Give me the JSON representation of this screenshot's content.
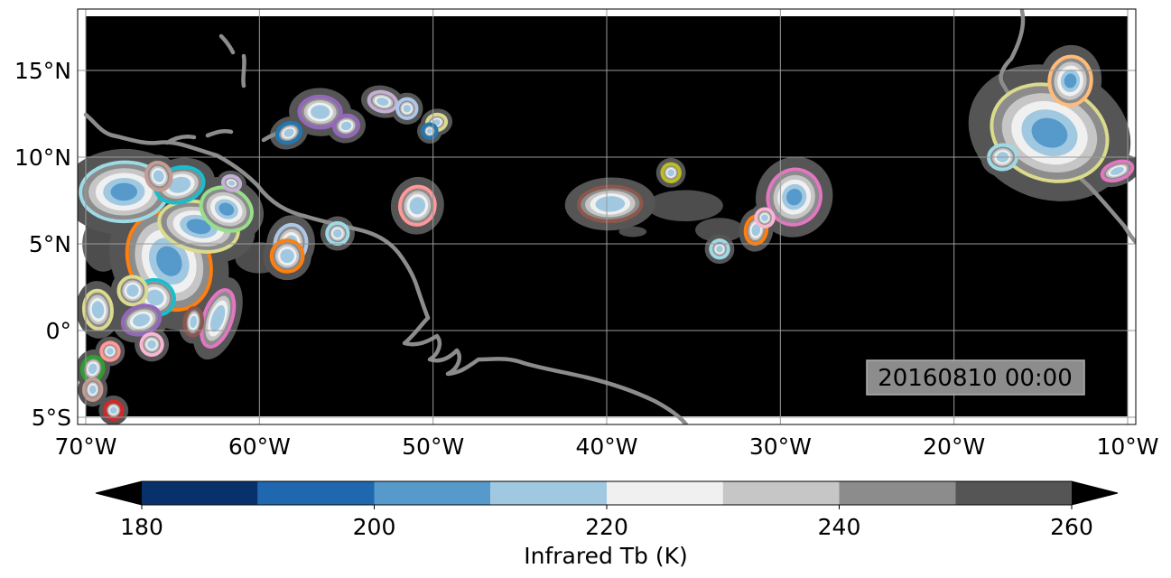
{
  "map": {
    "lon_range": [
      -70,
      -10
    ],
    "lat_range": [
      -5.5,
      18.5
    ],
    "background": "#000000",
    "coastline_color": "#8c8c8c",
    "gridlines": true,
    "x_ticks": [
      {
        "lon": -70,
        "label": "70°W"
      },
      {
        "lon": -60,
        "label": "60°W"
      },
      {
        "lon": -50,
        "label": "50°W"
      },
      {
        "lon": -40,
        "label": "40°W"
      },
      {
        "lon": -30,
        "label": "30°W"
      },
      {
        "lon": -20,
        "label": "20°W"
      },
      {
        "lon": -10,
        "label": "10°W"
      }
    ],
    "y_ticks": [
      {
        "lat": 15,
        "label": "15°N"
      },
      {
        "lat": 10,
        "label": "10°N"
      },
      {
        "lat": 5,
        "label": "5°N"
      },
      {
        "lat": 0,
        "label": "0°"
      },
      {
        "lat": -5,
        "label": "5°S"
      }
    ],
    "timestamp": "20160810 00:00"
  },
  "colorbar": {
    "label": "Infrared Tb (K)",
    "range": [
      180,
      260
    ],
    "levels": [
      {
        "from": 180,
        "to": 190,
        "color": "#08306b"
      },
      {
        "from": 190,
        "to": 200,
        "color": "#1f68b0"
      },
      {
        "from": 200,
        "to": 210,
        "color": "#5699cb"
      },
      {
        "from": 210,
        "to": 220,
        "color": "#a0c8e0"
      },
      {
        "from": 220,
        "to": 230,
        "color": "#f0f0f0"
      },
      {
        "from": 230,
        "to": 240,
        "color": "#c6c6c6"
      },
      {
        "from": 240,
        "to": 250,
        "color": "#8c8c8c"
      },
      {
        "from": 250,
        "to": 260,
        "color": "#555555"
      }
    ],
    "under_color": "#000000",
    "over_color": "#000000",
    "ticks": [
      {
        "value": 180,
        "label": "180"
      },
      {
        "value": 200,
        "label": "200"
      },
      {
        "value": 220,
        "label": "220"
      },
      {
        "value": 240,
        "label": "240"
      },
      {
        "value": 260,
        "label": "260"
      }
    ]
  },
  "clusters": [
    {
      "lon": -65.2,
      "lat": 4.0,
      "rx": 2.2,
      "ry": 2.8,
      "outline": "#ff7f0e"
    },
    {
      "lon": -63.5,
      "lat": 6.0,
      "rx": 2.2,
      "ry": 1.3,
      "outline": "#dbdb8d"
    },
    {
      "lon": -67.8,
      "lat": 8.0,
      "rx": 2.4,
      "ry": 1.6,
      "outline": "#9edae5"
    },
    {
      "lon": -64.6,
      "lat": 8.4,
      "rx": 1.3,
      "ry": 0.9,
      "outline": "#17becf"
    },
    {
      "lon": -61.9,
      "lat": 7.0,
      "rx": 1.4,
      "ry": 1.1,
      "outline": "#98df8a"
    },
    {
      "lon": -58.2,
      "lat": 5.0,
      "rx": 0.8,
      "ry": 1.0,
      "outline": "#aec7e8"
    },
    {
      "lon": -58.4,
      "lat": 4.3,
      "rx": 0.8,
      "ry": 0.8,
      "outline": "#ff7f0e"
    },
    {
      "lon": -55.5,
      "lat": 5.6,
      "rx": 0.5,
      "ry": 0.5,
      "outline": "#9edae5"
    },
    {
      "lon": -66.0,
      "lat": 1.9,
      "rx": 1.0,
      "ry": 0.9,
      "outline": "#17becf"
    },
    {
      "lon": -67.3,
      "lat": 2.3,
      "rx": 0.7,
      "ry": 0.7,
      "outline": "#dbdb8d"
    },
    {
      "lon": -69.3,
      "lat": 1.2,
      "rx": 0.7,
      "ry": 1.0,
      "outline": "#dbdb8d"
    },
    {
      "lon": -66.8,
      "lat": 0.6,
      "rx": 1.0,
      "ry": 0.7,
      "outline": "#9467bd"
    },
    {
      "lon": -62.4,
      "lat": 0.7,
      "rx": 0.7,
      "ry": 1.6,
      "outline": "#e377c2"
    },
    {
      "lon": -63.8,
      "lat": 0.5,
      "rx": 0.4,
      "ry": 0.7,
      "outline": "#8c564b"
    },
    {
      "lon": -66.2,
      "lat": -0.8,
      "rx": 0.5,
      "ry": 0.5,
      "outline": "#f7b6d2"
    },
    {
      "lon": -68.6,
      "lat": -1.2,
      "rx": 0.4,
      "ry": 0.4,
      "outline": "#ff9896"
    },
    {
      "lon": -69.6,
      "lat": -2.2,
      "rx": 0.5,
      "ry": 0.6,
      "outline": "#2ca02c"
    },
    {
      "lon": -69.6,
      "lat": -3.4,
      "rx": 0.4,
      "ry": 0.5,
      "outline": "#c49c94"
    },
    {
      "lon": -68.4,
      "lat": -4.6,
      "rx": 0.4,
      "ry": 0.4,
      "outline": "#d62728"
    },
    {
      "lon": -65.8,
      "lat": 8.9,
      "rx": 0.6,
      "ry": 0.7,
      "outline": "#c49c94"
    },
    {
      "lon": -61.6,
      "lat": 8.5,
      "rx": 0.4,
      "ry": 0.3,
      "outline": "#c5b0d5"
    },
    {
      "lon": -56.5,
      "lat": 12.6,
      "rx": 1.1,
      "ry": 0.8,
      "outline": "#9467bd"
    },
    {
      "lon": -55.0,
      "lat": 11.8,
      "rx": 0.6,
      "ry": 0.5,
      "outline": "#9467bd"
    },
    {
      "lon": -58.3,
      "lat": 11.4,
      "rx": 0.6,
      "ry": 0.45,
      "outline": "#1f77b4"
    },
    {
      "lon": -52.9,
      "lat": 13.2,
      "rx": 0.7,
      "ry": 0.45,
      "outline": "#c5b0d5"
    },
    {
      "lon": -51.5,
      "lat": 12.8,
      "rx": 0.45,
      "ry": 0.45,
      "outline": "#aec7e8"
    },
    {
      "lon": -49.8,
      "lat": 12.0,
      "rx": 0.45,
      "ry": 0.35,
      "outline": "#dbdb8d"
    },
    {
      "lon": -50.2,
      "lat": 11.5,
      "rx": 0.3,
      "ry": 0.3,
      "outline": "#1f77b4"
    },
    {
      "lon": -50.9,
      "lat": 7.2,
      "rx": 0.9,
      "ry": 1.0,
      "outline": "#ff9896"
    },
    {
      "lon": -39.8,
      "lat": 7.3,
      "rx": 1.7,
      "ry": 0.9,
      "outline": "#8c564b"
    },
    {
      "lon": -36.3,
      "lat": 9.1,
      "rx": 0.4,
      "ry": 0.4,
      "outline": "#bcbd22"
    },
    {
      "lon": -29.2,
      "lat": 7.7,
      "rx": 1.4,
      "ry": 1.5,
      "outline": "#e377c2"
    },
    {
      "lon": -31.4,
      "lat": 5.8,
      "rx": 0.5,
      "ry": 0.7,
      "outline": "#ff7f0e"
    },
    {
      "lon": -30.9,
      "lat": 6.5,
      "rx": 0.4,
      "ry": 0.4,
      "outline": "#f7b6d2"
    },
    {
      "lon": -33.5,
      "lat": 4.7,
      "rx": 0.4,
      "ry": 0.4,
      "outline": "#9edae5"
    },
    {
      "lon": -14.5,
      "lat": 11.4,
      "rx": 3.3,
      "ry": 2.6,
      "outline": "#dbdb8d"
    },
    {
      "lon": -13.3,
      "lat": 14.4,
      "rx": 1.1,
      "ry": 1.3,
      "outline": "#ffbb78"
    },
    {
      "lon": -17.2,
      "lat": 10.0,
      "rx": 0.7,
      "ry": 0.6,
      "outline": "#9edae5"
    },
    {
      "lon": -10.6,
      "lat": 9.2,
      "rx": 0.8,
      "ry": 0.4,
      "outline": "#e377c2"
    }
  ]
}
